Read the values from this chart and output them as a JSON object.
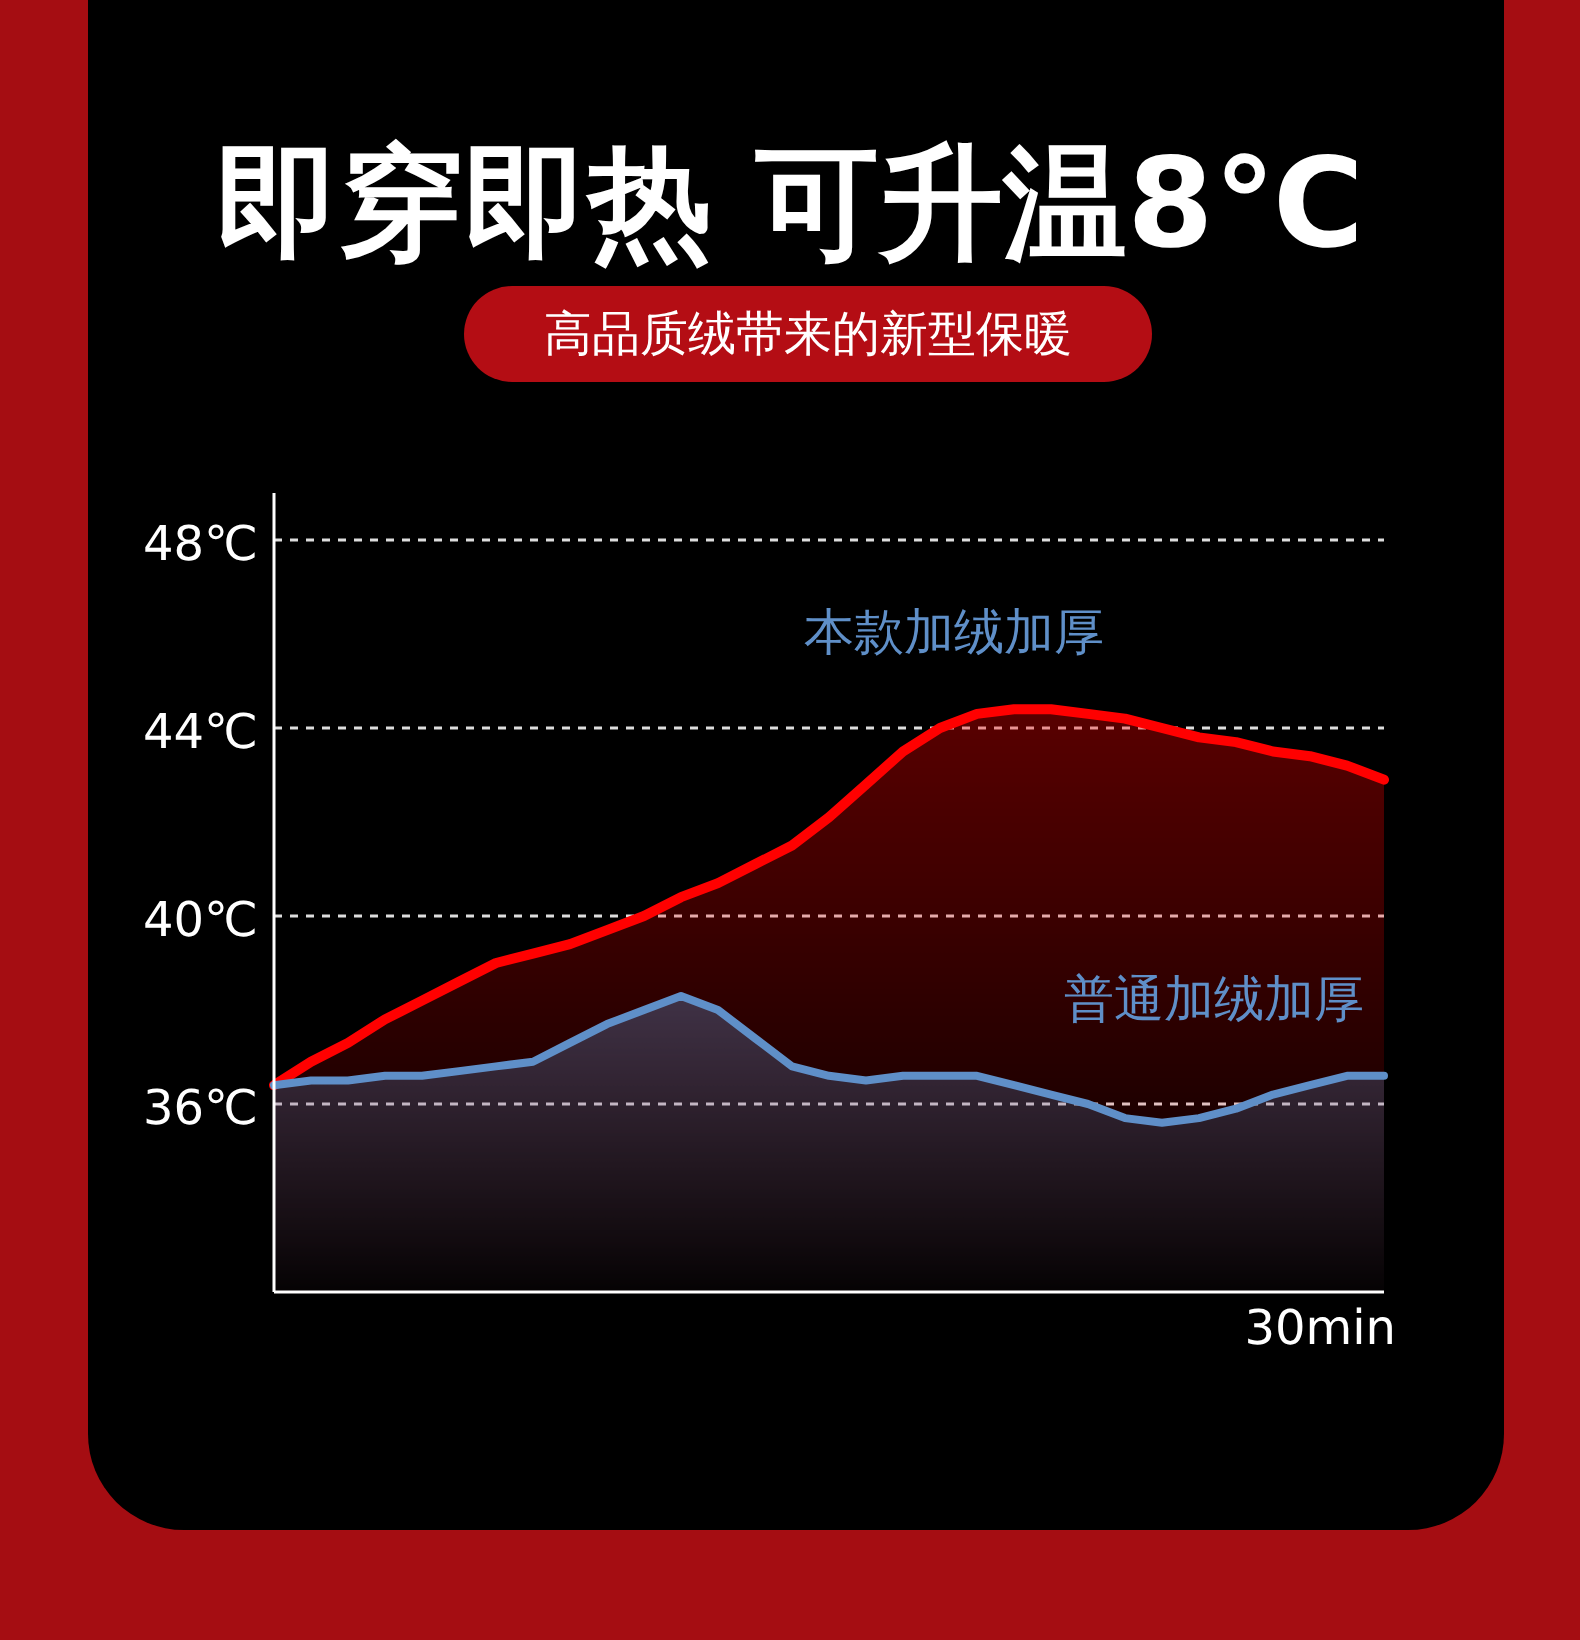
{
  "chart_data": {
    "type": "area",
    "title": "即穿即热 可升温8℃",
    "subtitle": "高品质绒带来的新型保暖",
    "categories": [
      null,
      null,
      null,
      null,
      null,
      null,
      null,
      null,
      null,
      null,
      null,
      null,
      null,
      null,
      null,
      null,
      null,
      null,
      null,
      null,
      null,
      null,
      null,
      null,
      null,
      null,
      null,
      null,
      null,
      null,
      null
    ],
    "annotations": [
      "30min"
    ],
    "ylim": [
      32,
      49
    ],
    "yticks": [
      {
        "value": 36,
        "label": "36℃"
      },
      {
        "value": 40,
        "label": "40℃"
      },
      {
        "value": 44,
        "label": "44℃"
      },
      {
        "value": 48,
        "label": "48℃"
      }
    ],
    "grid": "y",
    "line_style": "solid",
    "series": [
      {
        "name": "本款加绒加厚",
        "color": "#ff0000",
        "values": [
          36.4,
          36.9,
          37.3,
          37.8,
          38.2,
          38.6,
          39,
          39.2,
          39.4,
          39.7,
          40,
          40.4,
          40.7,
          41.1,
          41.5,
          42.1,
          42.8,
          43.5,
          44,
          44.3,
          44.4,
          44.4,
          44.3,
          44.2,
          44,
          43.8,
          43.7,
          43.5,
          43.4,
          43.2,
          42.9
        ]
      },
      {
        "name": "普通加绒加厚",
        "color": "#5f8fc8",
        "values": [
          36.4,
          36.5,
          36.5,
          36.6,
          36.6,
          36.7,
          36.8,
          36.9,
          37.3,
          37.7,
          38,
          38.3,
          38,
          37.4,
          36.8,
          36.6,
          36.5,
          36.6,
          36.6,
          36.6,
          36.4,
          36.2,
          36,
          35.7,
          35.6,
          35.7,
          35.9,
          36.2,
          36.4,
          36.6,
          36.6
        ]
      }
    ]
  }
}
